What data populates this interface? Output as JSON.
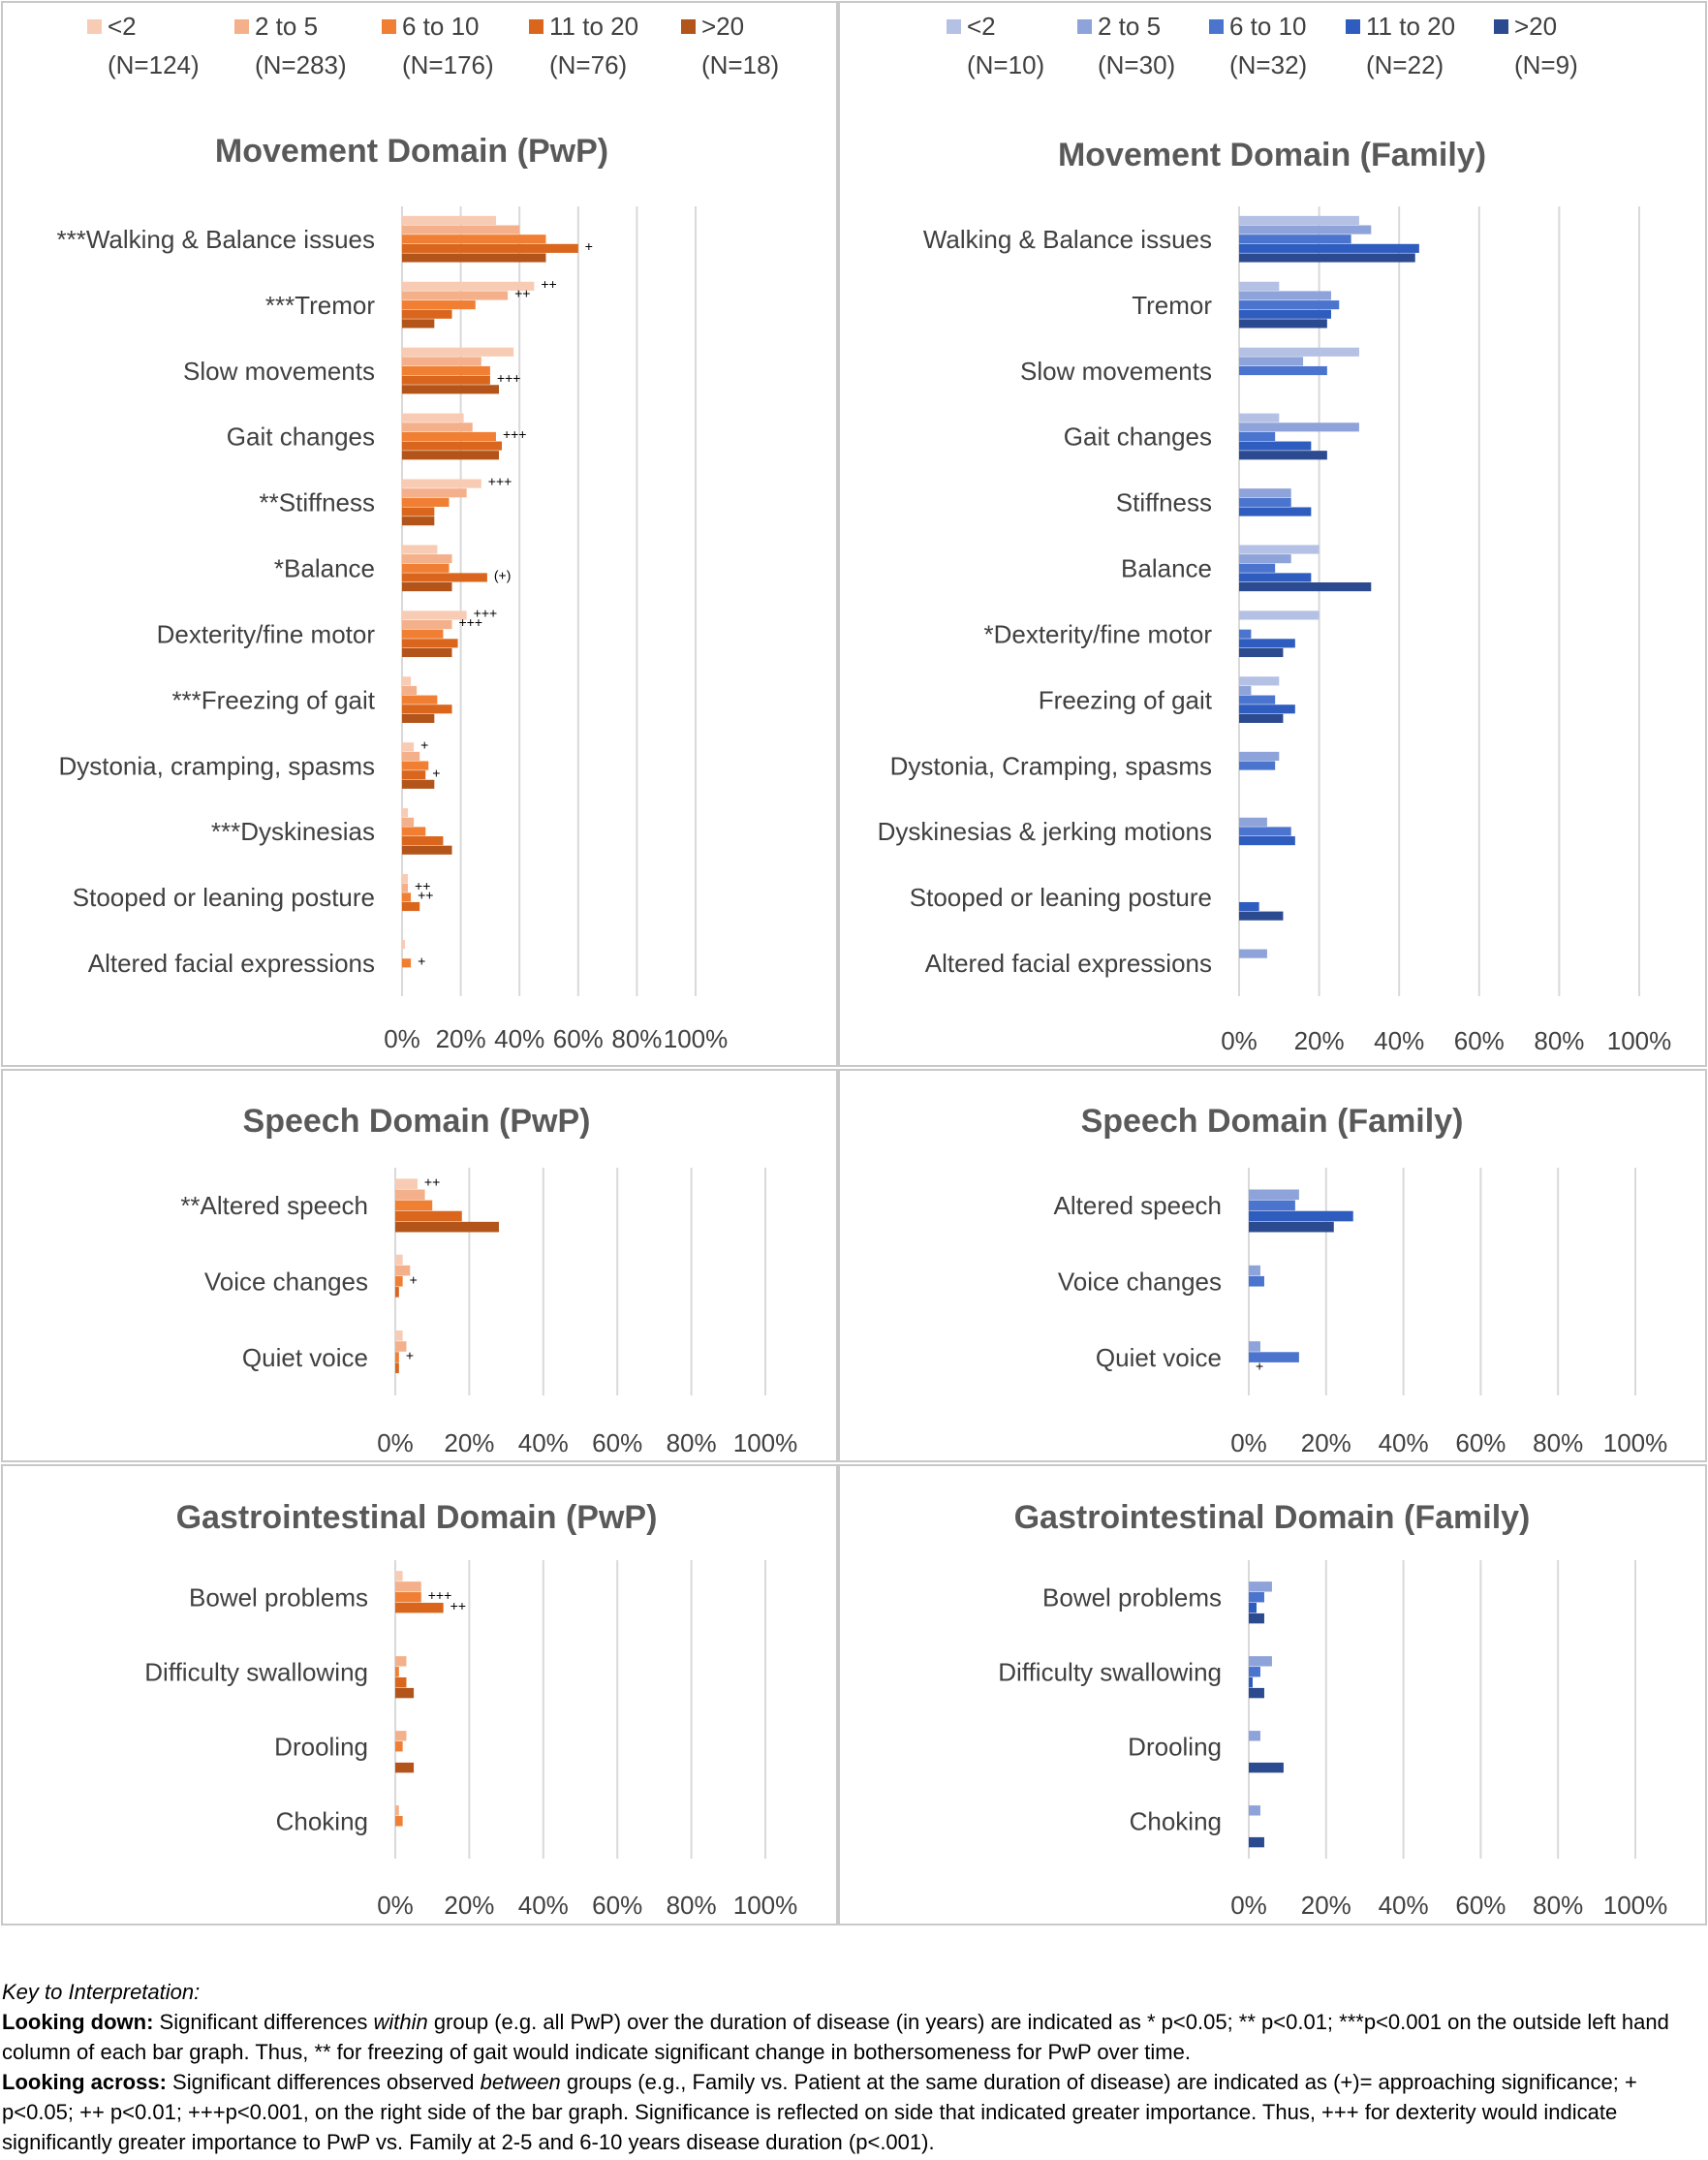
{
  "colors": {
    "pwp": [
      "#f8cbb4",
      "#f4b08a",
      "#f07f34",
      "#d9661c",
      "#b3541a"
    ],
    "family": [
      "#b4c0e4",
      "#8ea3d9",
      "#4b74cf",
      "#2f5cbf",
      "#2b4a90"
    ],
    "grid": "#d9d9d9",
    "text": "#404040",
    "panel_border": "#c8c8c8"
  },
  "legends": {
    "pwp": [
      {
        "label": "<2",
        "n": "(N=124)"
      },
      {
        "label": "2 to 5",
        "n": "(N=283)"
      },
      {
        "label": "6 to 10",
        "n": "(N=176)"
      },
      {
        "label": "11 to 20",
        "n": "(N=76)"
      },
      {
        "label": ">20",
        "n": "(N=18)"
      }
    ],
    "family": [
      {
        "label": "<2",
        "n": "(N=10)"
      },
      {
        "label": "2 to 5",
        "n": "(N=30)"
      },
      {
        "label": "6 to 10",
        "n": "(N=32)"
      },
      {
        "label": "11 to 20",
        "n": "(N=22)"
      },
      {
        "label": ">20",
        "n": "(N=9)"
      }
    ]
  },
  "chart_data": [
    {
      "type": "bar",
      "orientation": "horizontal",
      "title": "Movement Domain (PwP)",
      "xlim": [
        0,
        100
      ],
      "xticks": [
        "0%",
        "20%",
        "40%",
        "60%",
        "80%",
        "100%"
      ],
      "series_names": [
        "<2",
        "2 to 5",
        "6 to 10",
        "11 to 20",
        ">20"
      ],
      "categories": [
        "***Walking & Balance issues",
        "***Tremor",
        "Slow movements",
        "Gait changes",
        "**Stiffness",
        "*Balance",
        "Dexterity/fine motor",
        "***Freezing of gait",
        "Dystonia, cramping, spasms",
        "***Dyskinesias",
        "Stooped or leaning posture",
        "Altered facial expressions"
      ],
      "values": [
        [
          32,
          40,
          49,
          60,
          49
        ],
        [
          45,
          36,
          25,
          17,
          11
        ],
        [
          38,
          27,
          30,
          30,
          33
        ],
        [
          21,
          24,
          32,
          34,
          33
        ],
        [
          27,
          22,
          16,
          11,
          11
        ],
        [
          12,
          17,
          16,
          29,
          17
        ],
        [
          22,
          17,
          14,
          19,
          17
        ],
        [
          3,
          5,
          12,
          17,
          11
        ],
        [
          4,
          6,
          9,
          8,
          11
        ],
        [
          2,
          4,
          8,
          14,
          17
        ],
        [
          2,
          2,
          3,
          6,
          0
        ],
        [
          1,
          0,
          3,
          0,
          0
        ]
      ],
      "annotations": [
        {
          "category": 0,
          "series": 3,
          "text": "+"
        },
        {
          "category": 1,
          "series": 0,
          "text": "++"
        },
        {
          "category": 1,
          "series": 1,
          "text": "++"
        },
        {
          "category": 2,
          "series": 3,
          "text": "+++"
        },
        {
          "category": 3,
          "series": 2,
          "text": "+++"
        },
        {
          "category": 4,
          "series": 0,
          "text": "+++"
        },
        {
          "category": 5,
          "series": 3,
          "text": "(+)"
        },
        {
          "category": 6,
          "series": 0,
          "text": "+++"
        },
        {
          "category": 6,
          "series": 1,
          "text": "+++"
        },
        {
          "category": 8,
          "series": 0,
          "text": "+"
        },
        {
          "category": 8,
          "series": 3,
          "text": "+"
        },
        {
          "category": 10,
          "series": 1,
          "text": "++"
        },
        {
          "category": 10,
          "series": 2,
          "text": "++"
        },
        {
          "category": 11,
          "series": 2,
          "text": "+"
        }
      ]
    },
    {
      "type": "bar",
      "orientation": "horizontal",
      "title": "Movement Domain (Family)",
      "xlim": [
        0,
        100
      ],
      "xticks": [
        "0%",
        "20%",
        "40%",
        "60%",
        "80%",
        "100%"
      ],
      "series_names": [
        "<2",
        "2 to 5",
        "6 to 10",
        "11 to 20",
        ">20"
      ],
      "categories": [
        "Walking & Balance issues",
        "Tremor",
        "Slow movements",
        "Gait changes",
        "Stiffness",
        "Balance",
        "*Dexterity/fine motor",
        "Freezing of gait",
        "Dystonia, Cramping, spasms",
        "Dyskinesias & jerking motions",
        "Stooped or leaning posture",
        "Altered facial expressions"
      ],
      "values": [
        [
          30,
          33,
          28,
          45,
          44
        ],
        [
          10,
          23,
          25,
          23,
          22
        ],
        [
          30,
          16,
          22,
          0,
          0
        ],
        [
          10,
          30,
          9,
          18,
          22
        ],
        [
          0,
          13,
          13,
          18,
          0
        ],
        [
          20,
          13,
          9,
          18,
          33
        ],
        [
          20,
          0,
          3,
          14,
          11
        ],
        [
          10,
          3,
          9,
          14,
          11
        ],
        [
          0,
          10,
          9,
          0,
          0
        ],
        [
          0,
          7,
          13,
          14,
          0
        ],
        [
          0,
          0,
          0,
          5,
          11
        ],
        [
          0,
          7,
          0,
          0,
          0
        ]
      ],
      "annotations": []
    },
    {
      "type": "bar",
      "orientation": "horizontal",
      "title": "Speech Domain (PwP)",
      "xlim": [
        0,
        100
      ],
      "xticks": [
        "0%",
        "20%",
        "40%",
        "60%",
        "80%",
        "100%"
      ],
      "series_names": [
        "<2",
        "2 to 5",
        "6 to 10",
        "11 to 20",
        ">20"
      ],
      "categories": [
        "**Altered speech",
        "Voice changes",
        "Quiet voice"
      ],
      "values": [
        [
          6,
          8,
          10,
          18,
          28
        ],
        [
          2,
          4,
          2,
          1,
          0
        ],
        [
          2,
          3,
          1,
          1,
          0
        ]
      ],
      "annotations": [
        {
          "category": 0,
          "series": 0,
          "text": "++"
        },
        {
          "category": 1,
          "series": 2,
          "text": "+"
        },
        {
          "category": 2,
          "series": 2,
          "text": "+"
        }
      ]
    },
    {
      "type": "bar",
      "orientation": "horizontal",
      "title": "Speech Domain (Family)",
      "xlim": [
        0,
        100
      ],
      "xticks": [
        "0%",
        "20%",
        "40%",
        "60%",
        "80%",
        "100%"
      ],
      "series_names": [
        "<2",
        "2 to 5",
        "6 to 10",
        "11 to 20",
        ">20"
      ],
      "categories": [
        "Altered speech",
        "Voice changes",
        "Quiet voice"
      ],
      "values": [
        [
          0,
          13,
          12,
          27,
          22
        ],
        [
          0,
          3,
          4,
          0,
          0
        ],
        [
          0,
          3,
          13,
          0,
          0
        ]
      ],
      "annotations": [
        {
          "category": 2,
          "series": 3,
          "text": "+"
        }
      ]
    },
    {
      "type": "bar",
      "orientation": "horizontal",
      "title": "Gastrointestinal Domain (PwP)",
      "xlim": [
        0,
        100
      ],
      "xticks": [
        "0%",
        "20%",
        "40%",
        "60%",
        "80%",
        "100%"
      ],
      "series_names": [
        "<2",
        "2 to 5",
        "6 to 10",
        "11 to 20",
        ">20"
      ],
      "categories": [
        "Bowel problems",
        "Difficulty swallowing",
        "Drooling",
        "Choking"
      ],
      "values": [
        [
          2,
          7,
          7,
          13,
          0
        ],
        [
          0,
          3,
          1,
          3,
          5
        ],
        [
          0,
          3,
          2,
          0,
          5
        ],
        [
          0,
          1,
          2,
          0,
          0
        ]
      ],
      "annotations": [
        {
          "category": 0,
          "series": 2,
          "text": "+++"
        },
        {
          "category": 0,
          "series": 3,
          "text": "++"
        }
      ]
    },
    {
      "type": "bar",
      "orientation": "horizontal",
      "title": "Gastrointestinal Domain (Family)",
      "xlim": [
        0,
        100
      ],
      "xticks": [
        "0%",
        "20%",
        "40%",
        "60%",
        "80%",
        "100%"
      ],
      "series_names": [
        "<2",
        "2 to 5",
        "6 to 10",
        "11 to 20",
        ">20"
      ],
      "categories": [
        "Bowel problems",
        "Difficulty swallowing",
        "Drooling",
        "Choking"
      ],
      "values": [
        [
          0,
          6,
          4,
          2,
          4
        ],
        [
          0,
          6,
          3,
          1,
          4
        ],
        [
          0,
          3,
          0,
          0,
          9
        ],
        [
          0,
          3,
          0,
          0,
          4
        ]
      ],
      "annotations": []
    }
  ],
  "key": {
    "heading": "Key to Interpretation:",
    "down_label": "Looking down:",
    "down_text_1": "  Significant differences ",
    "down_text_em": "within",
    "down_text_2": " group (e.g. all PwP) over the duration of disease (in years) are indicated as * p<0.05; ** p<0.01; ***p<0.001 on the outside left hand column of each bar graph.  Thus, ** for freezing of gait would indicate significant change in bothersomeness for PwP over time.",
    "across_label": "Looking across:",
    "across_text_1": "  Significant differences observed ",
    "across_text_em": "between",
    "across_text_2": " groups (e.g., Family vs. Patient at the same duration of disease) are indicated as  (+)= approaching significance; + p<0.05; ++ p<0.01; +++p<0.001, on the right side of the bar graph.  Significance is reflected on side that indicated greater importance. Thus, +++ for dexterity would indicate significantly greater importance to PwP vs. Family at 2-5 and 6-10 years disease duration (p<.001)."
  }
}
